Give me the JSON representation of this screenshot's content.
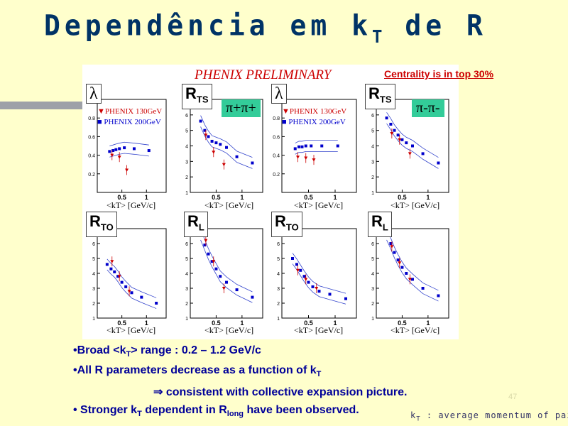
{
  "slide": {
    "title_main": "Dependência em k",
    "title_sub": "T",
    "title_end": " de R",
    "preliminary": "PHENIX PRELIMINARY",
    "centrality": "Centrality is in top 30%",
    "page_number": "47",
    "footnote_a": "k",
    "footnote_sub": "T",
    "footnote_b": " : average momentum of pair"
  },
  "figure": {
    "pion_pos": "π+π+",
    "pion_neg": "π-π-",
    "legend_130": "PHENIX 130GeV",
    "legend_200": "PHENIX 200GeV",
    "xlabel": "<kT> [GeV/c]",
    "panels": [
      {
        "label": "λ",
        "sub": ""
      },
      {
        "label": "R",
        "sub": "TS"
      },
      {
        "label": "λ",
        "sub": ""
      },
      {
        "label": "R",
        "sub": "TS"
      },
      {
        "label": "R",
        "sub": "TO"
      },
      {
        "label": "R",
        "sub": "L"
      },
      {
        "label": "R",
        "sub": "TO"
      },
      {
        "label": "R",
        "sub": "L"
      }
    ]
  },
  "bullets": {
    "b1_a": "•Broad <k",
    "b1_sub": "T",
    "b1_b": "> range : 0.2 – 1.2 GeV/c",
    "b2_a": "•All R parameters decrease as a function of k",
    "b2_sub": "T",
    "b3": "⇒ consistent with collective expansion picture.",
    "b4_a": "• Stronger k",
    "b4_sub": "T",
    "b4_b": " dependent in R",
    "b4_sub2": "long",
    "b4_c": " have been observed."
  },
  "chart_data": [
    {
      "type": "scatter",
      "panel": "lambda-pi-plus",
      "x_range": [
        0,
        1.4
      ],
      "ylim": [
        0,
        1
      ],
      "yticks": [
        0.2,
        0.4,
        0.6,
        0.8
      ],
      "xticks": [
        0.5,
        1
      ],
      "series": [
        {
          "name": "PHENIX 200GeV",
          "x": [
            0.25,
            0.32,
            0.38,
            0.45,
            0.55,
            0.75,
            1.05
          ],
          "y": [
            0.44,
            0.45,
            0.46,
            0.47,
            0.48,
            0.47,
            0.45
          ]
        },
        {
          "name": "PHENIX 130GeV",
          "x": [
            0.3,
            0.45,
            0.6
          ],
          "y": [
            0.4,
            0.38,
            0.24
          ]
        }
      ]
    },
    {
      "type": "scatter",
      "panel": "rts-pi-plus",
      "x_range": [
        0,
        1.4
      ],
      "ylim": [
        1,
        7
      ],
      "yticks": [
        1,
        2,
        3,
        4,
        5,
        6,
        7
      ],
      "xticks": [
        0.5,
        1
      ],
      "series": [
        {
          "name": "PHENIX 200GeV",
          "x": [
            0.2,
            0.28,
            0.35,
            0.42,
            0.5,
            0.58,
            0.7,
            0.9,
            1.2
          ],
          "y": [
            5.6,
            5.0,
            4.6,
            4.3,
            4.2,
            4.1,
            3.9,
            3.3,
            2.9
          ]
        },
        {
          "name": "PHENIX 130GeV",
          "x": [
            0.3,
            0.45,
            0.65
          ],
          "y": [
            4.7,
            3.6,
            2.8
          ]
        }
      ]
    },
    {
      "type": "scatter",
      "panel": "lambda-pi-minus",
      "x_range": [
        0,
        1.4
      ],
      "ylim": [
        0,
        1
      ],
      "yticks": [
        0.2,
        0.4,
        0.6,
        0.8
      ],
      "xticks": [
        0.5,
        1
      ],
      "series": [
        {
          "name": "PHENIX 200GeV",
          "x": [
            0.25,
            0.32,
            0.38,
            0.45,
            0.55,
            0.75,
            1.05
          ],
          "y": [
            0.47,
            0.49,
            0.49,
            0.5,
            0.5,
            0.5,
            0.5
          ]
        },
        {
          "name": "PHENIX 130GeV",
          "x": [
            0.3,
            0.45,
            0.6
          ],
          "y": [
            0.38,
            0.37,
            0.35
          ]
        }
      ]
    },
    {
      "type": "scatter",
      "panel": "rts-pi-minus",
      "x_range": [
        0,
        1.4
      ],
      "ylim": [
        1,
        7
      ],
      "yticks": [
        1,
        2,
        3,
        4,
        5,
        6,
        7
      ],
      "xticks": [
        0.5,
        1
      ],
      "series": [
        {
          "name": "PHENIX 200GeV",
          "x": [
            0.2,
            0.28,
            0.35,
            0.42,
            0.5,
            0.58,
            0.7,
            0.9,
            1.2
          ],
          "y": [
            5.8,
            5.4,
            5.0,
            4.7,
            4.4,
            4.2,
            4.0,
            3.5,
            2.9
          ]
        },
        {
          "name": "PHENIX 130GeV",
          "x": [
            0.3,
            0.45,
            0.65
          ],
          "y": [
            4.8,
            4.4,
            3.5
          ]
        }
      ]
    },
    {
      "type": "scatter",
      "panel": "rto-pi-plus",
      "x_range": [
        0,
        1.4
      ],
      "ylim": [
        1,
        7
      ],
      "yticks": [
        1,
        2,
        3,
        4,
        5,
        6
      ],
      "xticks": [
        0.5,
        1
      ],
      "series": [
        {
          "name": "PHENIX 200GeV",
          "x": [
            0.2,
            0.28,
            0.35,
            0.42,
            0.5,
            0.58,
            0.7,
            0.9,
            1.2
          ],
          "y": [
            4.6,
            4.3,
            4.1,
            3.8,
            3.4,
            3.1,
            2.7,
            2.4,
            2.0
          ]
        },
        {
          "name": "PHENIX 130GeV",
          "x": [
            0.3,
            0.45,
            0.65
          ],
          "y": [
            4.8,
            3.8,
            2.8
          ]
        }
      ]
    },
    {
      "type": "scatter",
      "panel": "rl-pi-plus",
      "x_range": [
        0,
        1.4
      ],
      "ylim": [
        1,
        7
      ],
      "yticks": [
        1,
        2,
        3,
        4,
        5,
        6
      ],
      "xticks": [
        0.5,
        1
      ],
      "series": [
        {
          "name": "PHENIX 200GeV",
          "x": [
            0.2,
            0.28,
            0.35,
            0.42,
            0.5,
            0.58,
            0.7,
            0.9,
            1.2
          ],
          "y": [
            6.6,
            5.9,
            5.3,
            4.8,
            4.3,
            3.8,
            3.4,
            2.9,
            2.4
          ]
        },
        {
          "name": "PHENIX 130GeV",
          "x": [
            0.3,
            0.45,
            0.65
          ],
          "y": [
            6.2,
            4.8,
            3.0
          ]
        }
      ]
    },
    {
      "type": "scatter",
      "panel": "rto-pi-minus",
      "x_range": [
        0,
        1.4
      ],
      "ylim": [
        1,
        7
      ],
      "yticks": [
        1,
        2,
        3,
        4,
        5,
        6
      ],
      "xticks": [
        0.5,
        1
      ],
      "series": [
        {
          "name": "PHENIX 200GeV",
          "x": [
            0.2,
            0.28,
            0.35,
            0.42,
            0.5,
            0.58,
            0.7,
            0.9,
            1.2
          ],
          "y": [
            5.0,
            4.6,
            4.2,
            3.8,
            3.4,
            3.1,
            2.8,
            2.6,
            2.3
          ]
        },
        {
          "name": "PHENIX 130GeV",
          "x": [
            0.3,
            0.45,
            0.65
          ],
          "y": [
            4.2,
            3.6,
            3.0
          ]
        }
      ]
    },
    {
      "type": "scatter",
      "panel": "rl-pi-minus",
      "x_range": [
        0,
        1.4
      ],
      "ylim": [
        1,
        7
      ],
      "yticks": [
        1,
        2,
        3,
        4,
        5,
        6
      ],
      "xticks": [
        0.5,
        1
      ],
      "series": [
        {
          "name": "PHENIX 200GeV",
          "x": [
            0.2,
            0.28,
            0.35,
            0.42,
            0.5,
            0.58,
            0.7,
            0.9,
            1.2
          ],
          "y": [
            6.6,
            6.0,
            5.4,
            4.9,
            4.4,
            4.0,
            3.6,
            3.0,
            2.5
          ]
        },
        {
          "name": "PHENIX 130GeV",
          "x": [
            0.3,
            0.45,
            0.65
          ],
          "y": [
            5.8,
            4.7,
            3.6
          ]
        }
      ]
    }
  ]
}
